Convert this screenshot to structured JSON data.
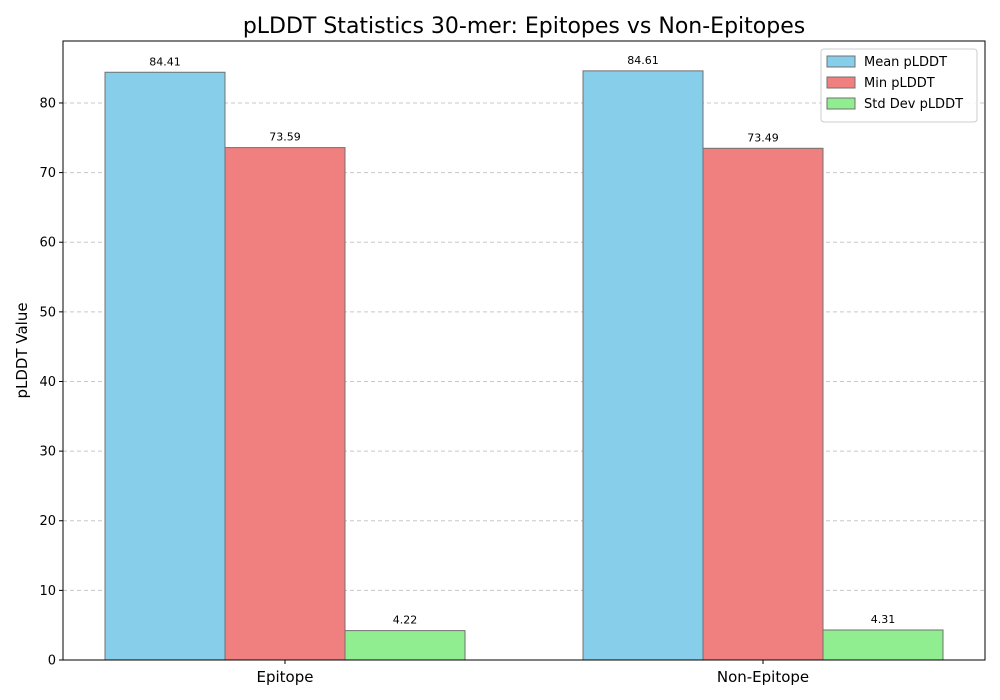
{
  "chart_data": {
    "type": "bar",
    "title": "pLDDT Statistics 30-mer: Epitopes vs Non-Epitopes",
    "xlabel": "",
    "ylabel": "pLDDT Value",
    "categories": [
      "Epitope",
      "Non-Epitope"
    ],
    "series": [
      {
        "name": "Mean pLDDT",
        "values": [
          84.41,
          84.61
        ],
        "labels": [
          "84.41",
          "84.61"
        ],
        "color": "#87ceeb"
      },
      {
        "name": "Min pLDDT",
        "values": [
          73.59,
          73.49
        ],
        "labels": [
          "73.59",
          "73.49"
        ],
        "color": "#f08080"
      },
      {
        "name": "Std Dev pLDDT",
        "values": [
          4.22,
          4.31
        ],
        "labels": [
          "4.22",
          "4.31"
        ],
        "color": "#90ee90"
      }
    ],
    "ylim": [
      0,
      88.9
    ],
    "yticks": [
      "0",
      "10",
      "20",
      "30",
      "40",
      "50",
      "60",
      "70",
      "80"
    ],
    "grid": "y-dashed",
    "legend_position": "top-right",
    "bar_edge_color": "#707070",
    "grid_color": "#c8c8c8"
  }
}
